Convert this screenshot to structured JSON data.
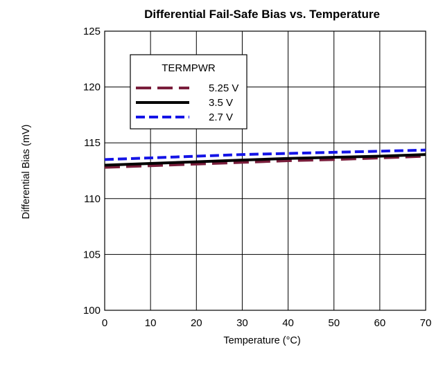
{
  "chart_data": {
    "type": "line",
    "title": "Differential Fail-Safe Bias vs. Temperature",
    "xlabel": "Temperature (°C)",
    "ylabel": "Differential Bias (mV)",
    "xlim": [
      0,
      70
    ],
    "ylim": [
      100,
      125
    ],
    "xticks": [
      0,
      10,
      20,
      30,
      40,
      50,
      60,
      70
    ],
    "yticks": [
      100,
      105,
      110,
      115,
      120,
      125
    ],
    "grid": true,
    "legend": {
      "title": "TERMPWR",
      "placement": "top-left"
    },
    "series": [
      {
        "name": "5.25 V",
        "color": "#7a1e3c",
        "dash": "long-dash",
        "x": [
          0,
          10,
          20,
          30,
          40,
          50,
          60,
          70
        ],
        "values": [
          112.8,
          112.95,
          113.1,
          113.25,
          113.4,
          113.5,
          113.65,
          113.8
        ]
      },
      {
        "name": "3.5 V",
        "color": "#000000",
        "dash": "solid",
        "x": [
          0,
          10,
          20,
          30,
          40,
          50,
          60,
          70
        ],
        "values": [
          113.0,
          113.15,
          113.3,
          113.45,
          113.6,
          113.7,
          113.8,
          113.95
        ]
      },
      {
        "name": "2.7 V",
        "color": "#1414e6",
        "dash": "short-dash",
        "x": [
          0,
          10,
          20,
          30,
          40,
          50,
          60,
          70
        ],
        "values": [
          113.5,
          113.65,
          113.8,
          113.95,
          114.05,
          114.15,
          114.25,
          114.35
        ]
      }
    ]
  }
}
